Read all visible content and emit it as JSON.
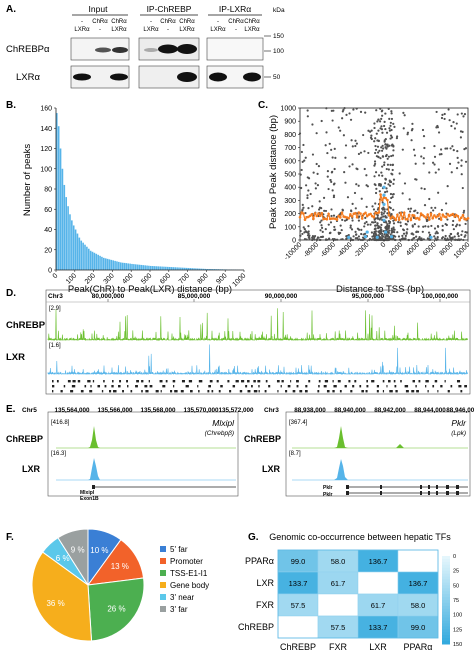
{
  "panel_letters": {
    "a": "A.",
    "b": "B.",
    "c": "C.",
    "d": "D.",
    "e": "E.",
    "f": "F.",
    "g": "G."
  },
  "panel_a": {
    "groups": [
      "Input",
      "IP-ChREBP",
      "IP-LXRα"
    ],
    "lane_chr": [
      "-",
      "ChRα",
      "ChRα",
      "-",
      "ChRα",
      "ChRα",
      "-",
      "ChRα",
      "ChRα"
    ],
    "lane_lxr": [
      "LXRα",
      "-",
      "LXRα",
      "LXRα",
      "-",
      "LXRα",
      "LXRα",
      "-",
      "LXRα"
    ],
    "kda": "kDa",
    "markers": [
      "150",
      "100",
      "50"
    ],
    "row_labels": [
      "ChREBPα",
      "LXRα"
    ]
  },
  "chart_data": [
    {
      "panel": "B",
      "type": "bar",
      "xlabel": "Peak(ChR) to Peak(LXR) distance (bp)",
      "ylabel": "Number of peaks",
      "xlim": [
        0,
        1000
      ],
      "ylim": [
        0,
        160
      ],
      "xticks": [
        "0",
        "100",
        "200",
        "300",
        "400",
        "500",
        "600",
        "700",
        "800",
        "900",
        "1000"
      ],
      "yticks": [
        "0",
        "20",
        "40",
        "60",
        "80",
        "100",
        "120",
        "140",
        "160"
      ],
      "color": "#56b4e9",
      "bin_width": 10,
      "values": [
        155,
        142,
        120,
        100,
        84,
        72,
        63,
        55,
        49,
        44,
        40,
        36,
        32,
        29,
        27,
        25,
        23,
        21,
        19,
        18,
        17,
        16,
        15,
        14,
        13,
        12,
        11.5,
        11,
        10.5,
        10,
        9.5,
        9,
        8.5,
        8,
        7.5,
        7.2,
        7,
        6.8,
        6.5,
        6.3,
        6,
        5.8,
        5.6,
        5.4,
        5.2,
        5,
        4.8,
        4.6,
        4.4,
        4.2,
        4,
        3.9,
        3.8,
        3.7,
        3.6,
        3.5,
        3.4,
        3.3,
        3.2,
        3.1,
        3,
        2.9,
        2.8,
        2.7,
        2.6,
        2.5,
        2.4,
        2.3,
        2.2,
        2.1,
        2,
        1.9,
        1.8,
        1.7,
        1.6,
        1.5,
        1.4,
        1.3,
        1.2,
        1.1,
        1,
        1,
        1,
        0.9,
        0.9,
        0.8,
        0.8,
        0.7,
        0.7,
        0.6,
        0.6,
        0.5,
        0.5,
        0.5,
        0.4,
        0.4,
        0.3,
        0.3,
        0.2,
        0.2
      ]
    },
    {
      "panel": "C",
      "type": "scatter",
      "xlabel": "Distance to TSS (bp)",
      "ylabel": "Peak to Peak distance (bp)",
      "xlim": [
        -10000,
        10000
      ],
      "ylim": [
        0,
        1000
      ],
      "xticks": [
        "-10000",
        "-8000",
        "-6000",
        "-4000",
        "-2000",
        "0",
        "2000",
        "4000",
        "6000",
        "8000",
        "10000"
      ],
      "yticks": [
        "0",
        "100",
        "200",
        "300",
        "400",
        "500",
        "600",
        "700",
        "800",
        "900",
        "1000"
      ],
      "series_colors": [
        "#505050",
        "#f47c20",
        "#56b4e9"
      ],
      "orange_trend_level": 180,
      "point_count": 900
    },
    {
      "panel": "G",
      "type": "heatmap",
      "title": "Genomic co-occurrence between hepatic TFs",
      "rows": [
        "PPARα",
        "LXR",
        "FXR",
        "ChREBP"
      ],
      "cols": [
        "ChREBP",
        "FXR",
        "LXR",
        "PPARα"
      ],
      "values": [
        [
          99.0,
          58.0,
          136.7,
          null
        ],
        [
          133.7,
          61.7,
          null,
          136.7
        ],
        [
          57.5,
          null,
          61.7,
          58.0
        ],
        [
          null,
          57.5,
          133.7,
          99.0
        ]
      ],
      "labels": [
        [
          "99.0",
          "58.0",
          "136.7",
          ""
        ],
        [
          "133.7",
          "61.7",
          "",
          "136.7"
        ],
        [
          "57.5",
          "",
          "61.7",
          "58.0"
        ],
        [
          "",
          "57.5",
          "133.7",
          "99.0"
        ]
      ],
      "colorbar_ticks": [
        "0",
        "25",
        "50",
        "75",
        "100",
        "125",
        "150"
      ],
      "colorbar_range": [
        0,
        150
      ]
    },
    {
      "panel": "F",
      "type": "pie",
      "categories": [
        "5' far",
        "Promoter",
        "TSS-E1-I1",
        "Gene body",
        "3' near",
        "3' far"
      ],
      "values": [
        10,
        13,
        26,
        36,
        6,
        9
      ],
      "labels": [
        "10 %",
        "13 %",
        "26 %",
        "36 %",
        "6 %",
        "9 %"
      ],
      "colors": [
        "#3a7fd5",
        "#f2622a",
        "#4caf50",
        "#f6ae1c",
        "#5bc8ea",
        "#9aa0a0"
      ]
    }
  ],
  "panel_d": {
    "chrom": "Chr3",
    "coords": [
      "80,000,000",
      "85,000,000",
      "90,000,000",
      "95,000,000",
      "100,000,000"
    ],
    "tracks": [
      {
        "label": "ChREBP",
        "scale": "[2.9]",
        "color": "#6abf2e"
      },
      {
        "label": "LXR",
        "scale": "[1.6]",
        "color": "#56b4e9"
      }
    ]
  },
  "panel_e_left": {
    "chrom": "Chr5",
    "coords": [
      "135,564,000",
      "135,566,000",
      "135,568,000",
      "135,570,000",
      "135,572,000"
    ],
    "gene": "Mlxipl",
    "gene_alias": "(Chrebpβ)",
    "tracks": [
      {
        "label": "ChREBP",
        "scale": "[416.8]",
        "color": "#6abf2e"
      },
      {
        "label": "LXR",
        "scale": "[16.3]",
        "color": "#56b4e9"
      }
    ],
    "annot": [
      "Mlxipl",
      "Exon1B"
    ]
  },
  "panel_e_right": {
    "chrom": "Chr3",
    "coords": [
      "88,938,000",
      "88,940,000",
      "88,942,000",
      "88,944,000",
      "88,946,000"
    ],
    "gene": "Pklr",
    "gene_alias": "(Lpk)",
    "tracks": [
      {
        "label": "ChREBP",
        "scale": "[367.4]",
        "color": "#6abf2e"
      },
      {
        "label": "LXR",
        "scale": "[8.7]",
        "color": "#56b4e9"
      }
    ],
    "annot": [
      "Pklr",
      "Pklr"
    ]
  }
}
